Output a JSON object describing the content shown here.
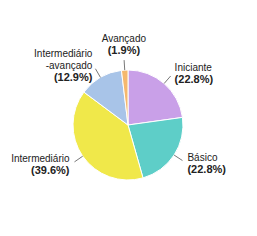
{
  "chart_data": {
    "type": "pie",
    "categories": [
      "Iniciante",
      "Básico",
      "Intermediário",
      "Intermediário\n-avançado",
      "Avançado"
    ],
    "values": [
      22.8,
      22.8,
      39.6,
      12.9,
      1.9
    ],
    "value_labels": [
      "(22.8%)",
      "(22.8%)",
      "(39.6%)",
      "(12.9%)",
      "(1.9%)"
    ],
    "colors": [
      "#c9a0e8",
      "#5ecec8",
      "#f0e84a",
      "#a8c4e8",
      "#f5b86e"
    ]
  }
}
